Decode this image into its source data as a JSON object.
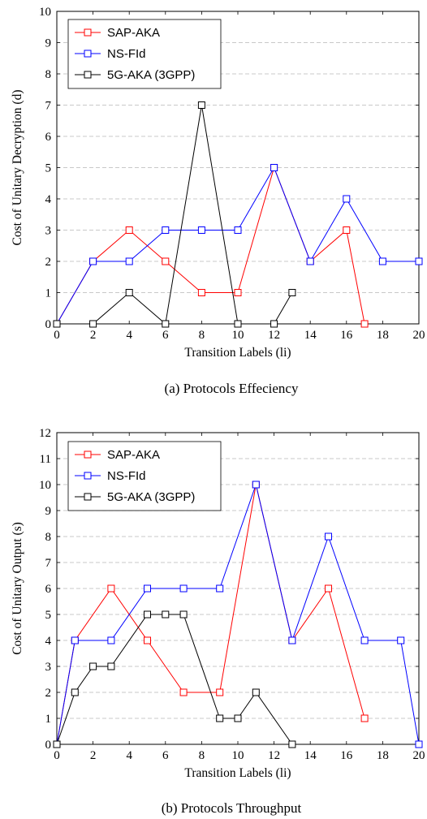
{
  "chart_data": [
    {
      "type": "line",
      "caption": "(a) Protocols Effeciency",
      "xlabel": "Transition Labels (li)",
      "ylabel": "Cost of Unitary Decryption (d)",
      "xlim": [
        0,
        20
      ],
      "ylim": [
        0,
        10
      ],
      "xticks": [
        0,
        2,
        4,
        6,
        8,
        10,
        12,
        14,
        16,
        18,
        20
      ],
      "yticks": [
        0,
        1,
        2,
        3,
        4,
        5,
        6,
        7,
        8,
        9,
        10
      ],
      "grid": "horizontal dashed",
      "legend_position": "top-left",
      "series": [
        {
          "name": "SAP-AKA",
          "color": "#ff0000",
          "x": [
            0,
            2,
            4,
            6,
            8,
            10,
            12,
            14,
            16,
            17
          ],
          "y": [
            0,
            2,
            3,
            2,
            1,
            1,
            5,
            2,
            3,
            0
          ]
        },
        {
          "name": "NS-FId",
          "color": "#0000ff",
          "x": [
            0,
            2,
            4,
            6,
            8,
            10,
            12,
            14,
            16,
            18,
            20
          ],
          "y": [
            0,
            2,
            2,
            3,
            3,
            3,
            5,
            2,
            4,
            2,
            2
          ]
        },
        {
          "name": "5G-AKA (3GPP)",
          "color": "#000000",
          "x": [
            0,
            2,
            4,
            6,
            8,
            10,
            12,
            13
          ],
          "y": [
            0,
            0,
            1,
            0,
            7,
            0,
            0,
            1
          ]
        }
      ]
    },
    {
      "type": "line",
      "caption": "(b) Protocols Throughput",
      "xlabel": "Transition Labels (li)",
      "ylabel": "Cost of Unitary Output (s)",
      "xlim": [
        0,
        20
      ],
      "ylim": [
        0,
        12
      ],
      "xticks": [
        0,
        2,
        4,
        6,
        8,
        10,
        12,
        14,
        16,
        18,
        20
      ],
      "yticks": [
        0,
        1,
        2,
        3,
        4,
        5,
        6,
        7,
        8,
        9,
        10,
        11,
        12
      ],
      "grid": "horizontal dashed",
      "legend_position": "top-left",
      "series": [
        {
          "name": "SAP-AKA",
          "color": "#ff0000",
          "x": [
            0,
            1,
            3,
            5,
            7,
            9,
            11,
            13,
            15,
            17
          ],
          "y": [
            0,
            4,
            6,
            4,
            2,
            2,
            10,
            4,
            6,
            1
          ]
        },
        {
          "name": "NS-FId",
          "color": "#0000ff",
          "x": [
            0,
            1,
            3,
            5,
            7,
            9,
            11,
            13,
            15,
            17,
            19,
            20
          ],
          "y": [
            0,
            4,
            4,
            6,
            6,
            6,
            10,
            4,
            8,
            4,
            4,
            0
          ]
        },
        {
          "name": "5G-AKA (3GPP)",
          "color": "#000000",
          "x": [
            0,
            1,
            2,
            3,
            5,
            6,
            7,
            9,
            10,
            11,
            13
          ],
          "y": [
            0,
            2,
            3,
            3,
            5,
            5,
            5,
            1,
            1,
            2,
            0
          ]
        }
      ]
    }
  ]
}
